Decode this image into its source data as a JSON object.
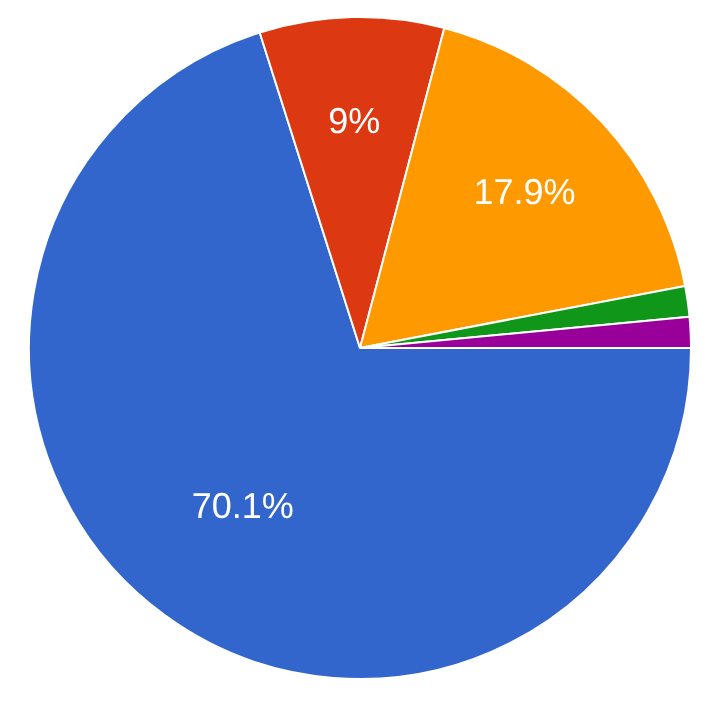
{
  "chart_data": {
    "type": "pie",
    "categories": [
      null,
      null,
      null,
      null,
      null
    ],
    "values": [
      70.1,
      9,
      17.9,
      1.5,
      1.5
    ],
    "colors": [
      "#3366cc",
      "#dc3912",
      "#ff9900",
      "#109618",
      "#990099"
    ],
    "value_labels": [
      "70.1%",
      "9%",
      "17.9%",
      null,
      null
    ],
    "legend": false
  }
}
